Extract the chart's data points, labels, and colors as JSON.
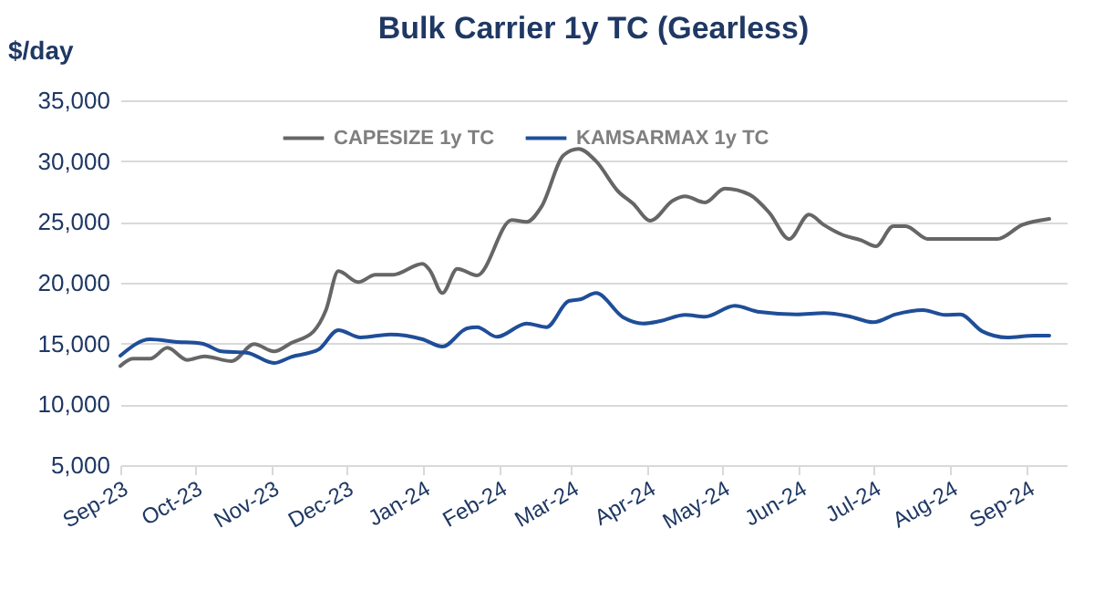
{
  "chart_data": {
    "type": "line",
    "title": "Bulk Carrier 1y TC (Gearless)",
    "ylabel": "$/day",
    "xlim": [
      "2023-09-01",
      "2024-09-17"
    ],
    "xticks": [
      {
        "value": "2023-09-01",
        "label": "Sep-23"
      },
      {
        "value": "2023-10-01",
        "label": "Oct-23"
      },
      {
        "value": "2023-11-01",
        "label": "Nov-23"
      },
      {
        "value": "2023-12-01",
        "label": "Dec-23"
      },
      {
        "value": "2024-01-01",
        "label": "Jan-24"
      },
      {
        "value": "2024-02-01",
        "label": "Feb-24"
      },
      {
        "value": "2024-03-01",
        "label": "Mar-24"
      },
      {
        "value": "2024-04-01",
        "label": "Apr-24"
      },
      {
        "value": "2024-05-01",
        "label": "May-24"
      },
      {
        "value": "2024-06-01",
        "label": "Jun-24"
      },
      {
        "value": "2024-07-01",
        "label": "Jul-24"
      },
      {
        "value": "2024-08-01",
        "label": "Aug-24"
      },
      {
        "value": "2024-09-01",
        "label": "Sep-24"
      }
    ],
    "ylim": [
      5000,
      35000
    ],
    "yticks": [
      {
        "value": 5000,
        "label": "5,000"
      },
      {
        "value": 10000,
        "label": "10,000"
      },
      {
        "value": 15000,
        "label": "15,000"
      },
      {
        "value": 20000,
        "label": "20,000"
      },
      {
        "value": 25000,
        "label": "25,000"
      },
      {
        "value": 30000,
        "label": "30,000"
      },
      {
        "value": 35000,
        "label": "35,000"
      }
    ],
    "grid": "y",
    "legend": "top",
    "series": [
      {
        "name": "CAPESIZE 1y TC",
        "color": "#666666",
        "x": [
          "2023-09-01",
          "2023-09-06",
          "2023-09-13",
          "2023-09-20",
          "2023-09-28",
          "2023-10-05",
          "2023-10-16",
          "2023-10-25",
          "2023-11-02",
          "2023-11-09",
          "2023-11-18",
          "2023-11-23",
          "2023-11-28",
          "2023-12-06",
          "2023-12-13",
          "2023-12-20",
          "2024-01-01",
          "2024-01-04",
          "2024-01-09",
          "2024-01-15",
          "2024-01-23",
          "2024-02-06",
          "2024-02-12",
          "2024-02-18",
          "2024-02-27",
          "2024-03-04",
          "2024-03-11",
          "2024-03-20",
          "2024-03-26",
          "2024-04-02",
          "2024-04-11",
          "2024-04-16",
          "2024-04-24",
          "2024-05-02",
          "2024-05-12",
          "2024-05-20",
          "2024-05-28",
          "2024-06-05",
          "2024-06-11",
          "2024-06-19",
          "2024-06-26",
          "2024-07-02",
          "2024-07-09",
          "2024-07-14",
          "2024-07-23",
          "2024-08-20",
          "2024-08-30",
          "2024-09-10"
        ],
        "values": [
          13150,
          13750,
          13750,
          14650,
          13650,
          13950,
          13550,
          14950,
          14350,
          15050,
          16000,
          17750,
          20950,
          20050,
          20650,
          20650,
          21550,
          21000,
          19150,
          21150,
          20600,
          25150,
          25000,
          26250,
          30500,
          31000,
          30000,
          27500,
          26500,
          25100,
          26750,
          27100,
          26600,
          27750,
          27250,
          25750,
          23600,
          25600,
          24750,
          23900,
          23500,
          23000,
          24650,
          24650,
          23600,
          23600,
          24750,
          25250
        ]
      },
      {
        "name": "KAMSARMAX 1y TC",
        "color": "#1f4e99",
        "x": [
          "2023-09-01",
          "2023-09-13",
          "2023-09-23",
          "2023-10-04",
          "2023-10-12",
          "2023-10-22",
          "2023-11-02",
          "2023-11-09",
          "2023-11-20",
          "2023-11-28",
          "2023-12-07",
          "2023-12-19",
          "2024-01-01",
          "2024-01-09",
          "2024-01-19",
          "2024-01-23",
          "2024-01-31",
          "2024-02-12",
          "2024-02-20",
          "2024-02-29",
          "2024-03-05",
          "2024-03-11",
          "2024-03-22",
          "2024-03-30",
          "2024-04-06",
          "2024-04-16",
          "2024-04-24",
          "2024-05-06",
          "2024-05-16",
          "2024-05-31",
          "2024-06-11",
          "2024-06-21",
          "2024-07-01",
          "2024-07-10",
          "2024-07-21",
          "2024-07-30",
          "2024-08-05",
          "2024-08-14",
          "2024-08-24",
          "2024-09-04",
          "2024-09-10"
        ],
        "values": [
          14000,
          15350,
          15150,
          15000,
          14350,
          14250,
          13400,
          13900,
          14500,
          16100,
          15500,
          15750,
          15350,
          14750,
          16250,
          16350,
          15550,
          16650,
          16350,
          18500,
          18650,
          19150,
          17150,
          16650,
          16850,
          17350,
          17200,
          18100,
          17600,
          17400,
          17500,
          17250,
          16750,
          17400,
          17750,
          17350,
          17400,
          16000,
          15500,
          15650,
          15650
        ]
      }
    ]
  }
}
